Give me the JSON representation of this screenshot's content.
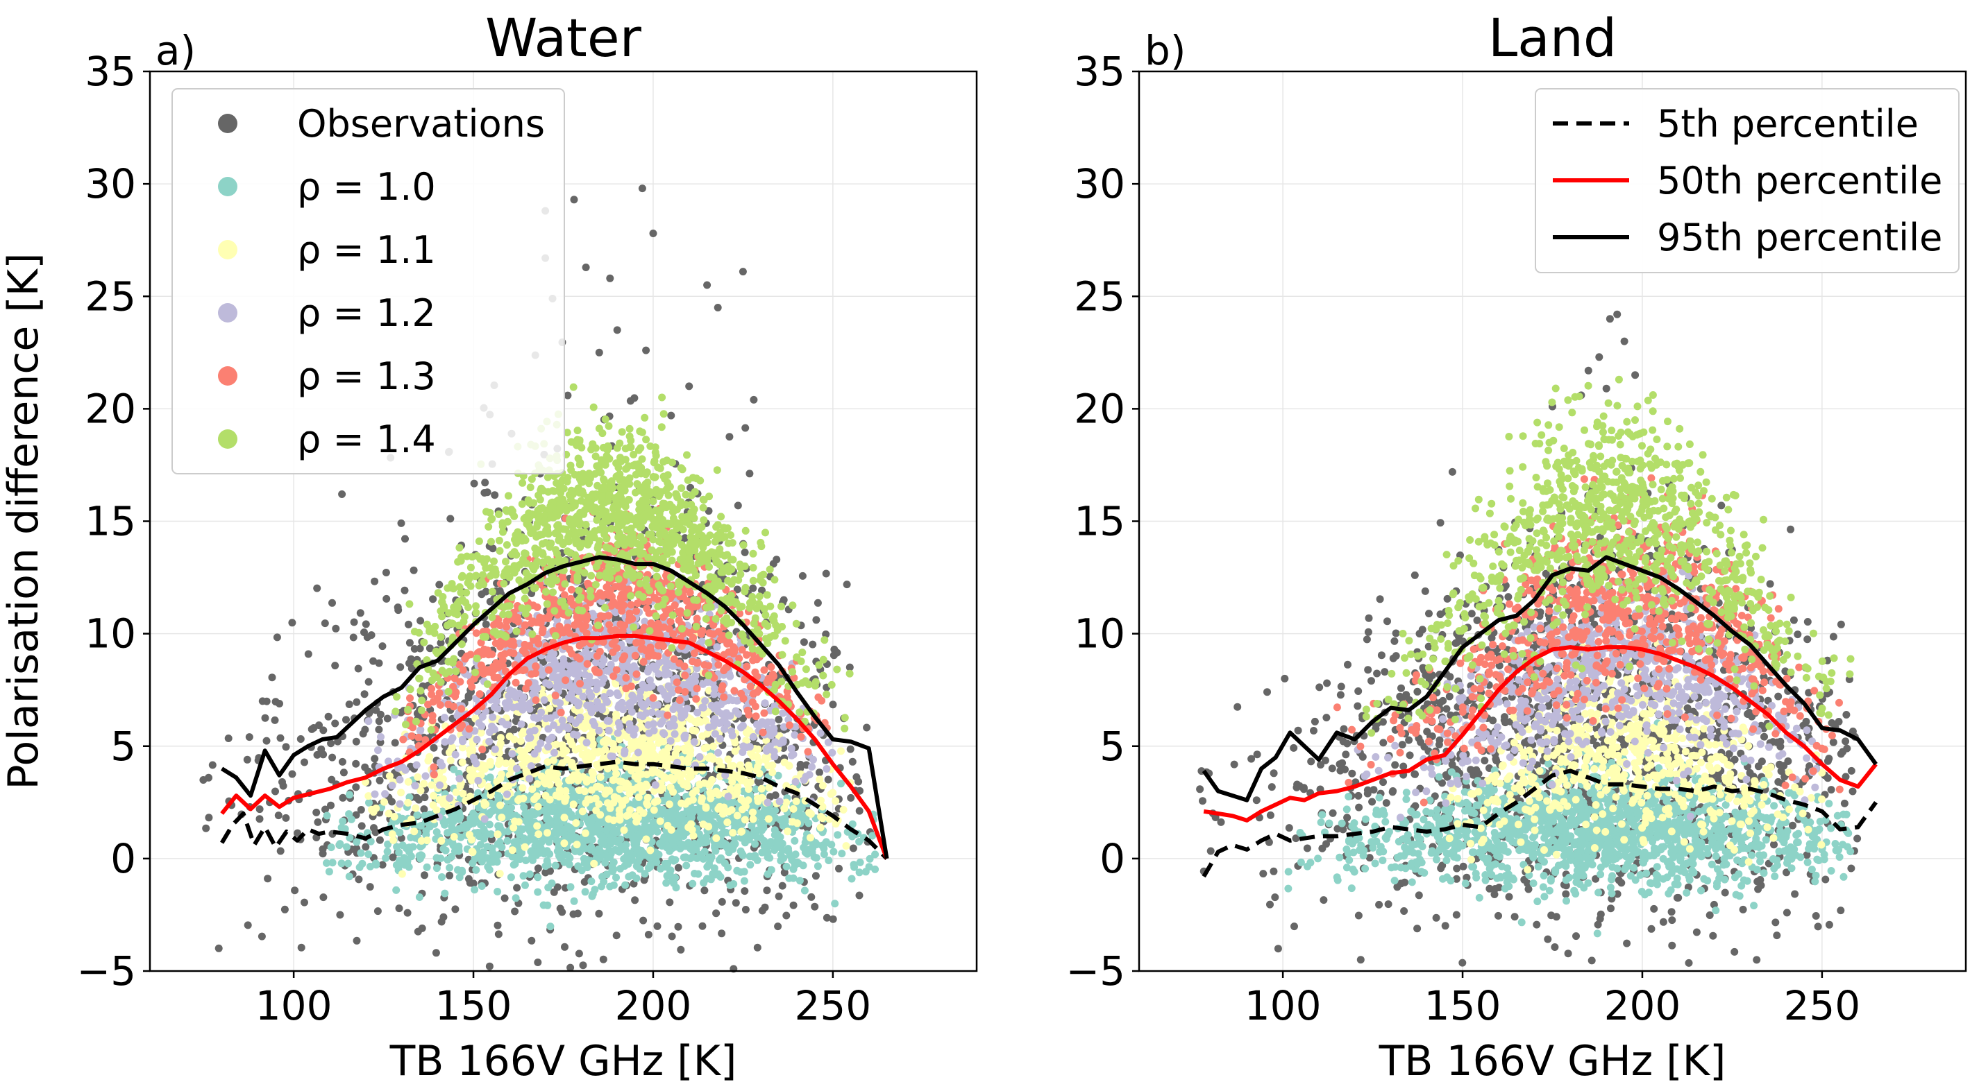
{
  "chart_data": [
    {
      "type": "scatter",
      "panel_label": "a)",
      "title": "Water",
      "xlabel": "TB 166V GHz [K]",
      "ylabel": "Polarisation difference [K]",
      "xlim": [
        60,
        290
      ],
      "ylim": [
        -5,
        35
      ],
      "xticks": [
        100,
        150,
        200,
        250
      ],
      "yticks": [
        -5,
        0,
        5,
        10,
        15,
        20,
        25,
        30,
        35
      ],
      "grid": true,
      "legend_position": "upper-left",
      "legend": [
        "Observations",
        "ρ = 1.0",
        "ρ = 1.1",
        "ρ = 1.2",
        "ρ = 1.3",
        "ρ = 1.4"
      ],
      "scatter_series": [
        {
          "name": "Observations",
          "color": "#666666",
          "x_range": [
            70,
            262
          ],
          "center": [
            180,
            6.5
          ],
          "spread": [
            42,
            5.5
          ],
          "n": 1400,
          "outliers": [
            [
              170,
              28.8
            ],
            [
              178,
              29.3
            ],
            [
              197,
              29.8
            ],
            [
              200,
              27.8
            ],
            [
              170,
              26.7
            ],
            [
              225,
              26.1
            ],
            [
              215,
              25.5
            ],
            [
              185,
              22.5
            ],
            [
              198,
              22.6
            ],
            [
              218,
              24.5
            ],
            [
              210,
              21.0
            ],
            [
              172,
              24.9
            ],
            [
              190,
              23.5
            ],
            [
              188,
              25.8
            ],
            [
              228,
              20.4
            ],
            [
              205,
              19.7
            ]
          ]
        },
        {
          "name": "ρ = 1.0",
          "color": "#8dd3c7",
          "x_range": [
            108,
            262
          ],
          "center": [
            190,
            1.6
          ],
          "spread": [
            34,
            1.3
          ],
          "n": 1500
        },
        {
          "name": "ρ = 1.1",
          "color": "#ffffb3",
          "x_range": [
            118,
            255
          ],
          "center": [
            190,
            4.8
          ],
          "spread": [
            30,
            1.8
          ],
          "n": 900
        },
        {
          "name": "ρ = 1.2",
          "color": "#bebada",
          "x_range": [
            120,
            250
          ],
          "center": [
            190,
            8.8
          ],
          "spread": [
            28,
            1.8
          ],
          "n": 900
        },
        {
          "name": "ρ = 1.3",
          "color": "#fb8072",
          "x_range": [
            130,
            250
          ],
          "center": [
            190,
            11.5
          ],
          "spread": [
            28,
            1.6
          ],
          "n": 700
        },
        {
          "name": "ρ = 1.4",
          "color": "#b3de69",
          "x_range": [
            128,
            255
          ],
          "center": [
            188,
            15.5
          ],
          "spread": [
            28,
            2.0
          ],
          "n": 1200
        }
      ],
      "lines": [
        {
          "name": "5th percentile",
          "color": "#000000",
          "style": "dashed",
          "x": [
            80,
            83,
            86,
            89,
            92,
            95,
            98,
            101,
            104,
            107,
            110,
            115,
            120,
            125,
            130,
            135,
            140,
            145,
            150,
            155,
            160,
            165,
            170,
            175,
            180,
            185,
            190,
            195,
            200,
            205,
            210,
            215,
            220,
            225,
            230,
            235,
            240,
            245,
            250,
            255,
            260,
            265
          ],
          "y": [
            0.7,
            1.5,
            2.0,
            0.6,
            1.4,
            0.5,
            1.2,
            0.8,
            1.3,
            1.1,
            1.2,
            1.1,
            0.9,
            1.3,
            1.5,
            1.6,
            1.9,
            2.2,
            2.6,
            3.0,
            3.5,
            3.8,
            4.1,
            4.0,
            4.1,
            4.2,
            4.3,
            4.2,
            4.2,
            4.1,
            4.0,
            4.0,
            3.9,
            3.8,
            3.6,
            3.2,
            2.9,
            2.4,
            1.9,
            1.3,
            0.8,
            0.0
          ]
        },
        {
          "name": "50th percentile",
          "color": "#ff0000",
          "style": "solid",
          "x": [
            80,
            84,
            88,
            92,
            96,
            100,
            105,
            110,
            115,
            120,
            125,
            130,
            135,
            140,
            145,
            150,
            155,
            160,
            165,
            170,
            175,
            180,
            185,
            190,
            195,
            200,
            205,
            210,
            215,
            220,
            225,
            230,
            235,
            240,
            245,
            250,
            255,
            260,
            265
          ],
          "y": [
            2.0,
            2.8,
            2.2,
            2.8,
            2.3,
            2.7,
            2.9,
            3.1,
            3.4,
            3.6,
            4.0,
            4.3,
            4.8,
            5.4,
            6.0,
            6.6,
            7.3,
            8.2,
            8.9,
            9.3,
            9.6,
            9.8,
            9.8,
            9.9,
            9.9,
            9.8,
            9.7,
            9.6,
            9.2,
            8.8,
            8.3,
            7.7,
            7.0,
            6.2,
            5.3,
            4.2,
            3.2,
            2.1,
            0.0
          ]
        },
        {
          "name": "95th percentile",
          "color": "#000000",
          "style": "solid",
          "x": [
            80,
            84,
            88,
            92,
            96,
            100,
            104,
            108,
            112,
            116,
            120,
            125,
            130,
            135,
            140,
            145,
            150,
            155,
            160,
            165,
            170,
            175,
            180,
            185,
            190,
            195,
            200,
            205,
            210,
            215,
            220,
            225,
            230,
            235,
            240,
            245,
            250,
            255,
            260,
            265
          ],
          "y": [
            4.0,
            3.6,
            2.8,
            4.8,
            3.7,
            4.6,
            5.0,
            5.3,
            5.4,
            6.0,
            6.6,
            7.2,
            7.6,
            8.5,
            8.8,
            9.6,
            10.4,
            11.1,
            11.8,
            12.2,
            12.7,
            13.0,
            13.2,
            13.4,
            13.3,
            13.1,
            13.1,
            12.8,
            12.3,
            11.8,
            11.2,
            10.4,
            9.5,
            8.6,
            7.4,
            6.3,
            5.3,
            5.2,
            4.9,
            0.0
          ]
        }
      ]
    },
    {
      "type": "scatter",
      "panel_label": "b)",
      "title": "Land",
      "xlabel": "TB 166V GHz [K]",
      "ylabel": "",
      "xlim": [
        60,
        290
      ],
      "ylim": [
        -5,
        35
      ],
      "xticks": [
        100,
        150,
        200,
        250
      ],
      "yticks": [
        -5,
        0,
        5,
        10,
        15,
        20,
        25,
        30,
        35
      ],
      "grid": true,
      "legend_position": "upper-right",
      "legend": [
        "5th percentile",
        "50th percentile",
        "95th percentile"
      ],
      "scatter_series": [
        {
          "name": "Observations",
          "color": "#666666",
          "x_range": [
            68,
            260
          ],
          "center": [
            185,
            6.0
          ],
          "spread": [
            40,
            4.5
          ],
          "n": 1400,
          "outliers": [
            [
              193,
              24.2
            ],
            [
              191,
              24.0
            ],
            [
              195,
              23.0
            ],
            [
              188,
              22.3
            ],
            [
              185,
              21.7
            ],
            [
              183,
              20.6
            ],
            [
              190,
              20.9
            ],
            [
              198,
              21.5
            ],
            [
              175,
              20.1
            ]
          ]
        },
        {
          "name": "ρ = 1.0",
          "color": "#8dd3c7",
          "x_range": [
            100,
            258
          ],
          "center": [
            190,
            1.4
          ],
          "spread": [
            35,
            1.3
          ],
          "n": 1500
        },
        {
          "name": "ρ = 1.1",
          "color": "#ffffb3",
          "x_range": [
            145,
            250
          ],
          "center": [
            195,
            5.0
          ],
          "spread": [
            22,
            1.8
          ],
          "n": 600
        },
        {
          "name": "ρ = 1.2",
          "color": "#bebada",
          "x_range": [
            120,
            250
          ],
          "center": [
            195,
            8.5
          ],
          "spread": [
            28,
            1.8
          ],
          "n": 700
        },
        {
          "name": "ρ = 1.3",
          "color": "#fb8072",
          "x_range": [
            110,
            255
          ],
          "center": [
            195,
            11.5
          ],
          "spread": [
            28,
            2.0
          ],
          "n": 700
        },
        {
          "name": "ρ = 1.4",
          "color": "#b3de69",
          "x_range": [
            120,
            258
          ],
          "center": [
            192,
            15.5
          ],
          "spread": [
            28,
            2.2
          ],
          "n": 900
        }
      ],
      "lines": [
        {
          "name": "5th percentile",
          "color": "#000000",
          "style": "dashed",
          "x": [
            78,
            82,
            86,
            90,
            94,
            98,
            102,
            106,
            110,
            115,
            120,
            125,
            130,
            135,
            140,
            145,
            150,
            155,
            160,
            165,
            170,
            175,
            180,
            185,
            190,
            195,
            200,
            205,
            210,
            215,
            220,
            225,
            230,
            235,
            240,
            245,
            250,
            255,
            260,
            265
          ],
          "y": [
            -0.8,
            0.3,
            0.6,
            0.4,
            0.8,
            1.1,
            0.8,
            0.9,
            1.0,
            1.0,
            1.1,
            1.2,
            1.4,
            1.3,
            1.2,
            1.3,
            1.5,
            1.4,
            2.0,
            2.5,
            3.1,
            3.7,
            3.9,
            3.6,
            3.3,
            3.3,
            3.2,
            3.1,
            3.1,
            3.0,
            3.2,
            3.0,
            3.1,
            2.9,
            2.6,
            2.4,
            2.1,
            1.3,
            1.4,
            2.5
          ]
        },
        {
          "name": "50th percentile",
          "color": "#ff0000",
          "style": "solid",
          "x": [
            78,
            82,
            86,
            90,
            94,
            98,
            102,
            106,
            110,
            115,
            120,
            125,
            130,
            135,
            140,
            145,
            150,
            155,
            160,
            165,
            170,
            175,
            180,
            185,
            190,
            195,
            200,
            205,
            210,
            215,
            220,
            225,
            230,
            235,
            240,
            245,
            250,
            255,
            260,
            265
          ],
          "y": [
            2.1,
            2.0,
            1.9,
            1.7,
            2.1,
            2.4,
            2.7,
            2.6,
            2.9,
            3.0,
            3.2,
            3.5,
            3.8,
            3.9,
            4.4,
            4.6,
            5.5,
            6.5,
            7.5,
            8.3,
            8.9,
            9.3,
            9.4,
            9.3,
            9.4,
            9.4,
            9.3,
            9.1,
            8.8,
            8.5,
            8.1,
            7.6,
            7.0,
            6.4,
            5.6,
            5.0,
            4.2,
            3.5,
            3.2,
            4.2
          ]
        },
        {
          "name": "95th percentile",
          "color": "#000000",
          "style": "solid",
          "x": [
            78,
            82,
            86,
            90,
            94,
            98,
            102,
            106,
            110,
            115,
            120,
            125,
            130,
            135,
            140,
            145,
            150,
            155,
            160,
            165,
            170,
            175,
            180,
            185,
            190,
            195,
            200,
            205,
            210,
            215,
            220,
            225,
            230,
            235,
            240,
            245,
            250,
            255,
            260,
            265
          ],
          "y": [
            3.9,
            3.0,
            2.8,
            2.6,
            4.0,
            4.5,
            5.6,
            5.0,
            4.4,
            5.6,
            5.3,
            6.1,
            6.7,
            6.6,
            7.2,
            8.3,
            9.4,
            10.0,
            10.6,
            10.8,
            11.5,
            12.6,
            12.9,
            12.8,
            13.4,
            13.1,
            12.8,
            12.5,
            12.0,
            11.4,
            10.8,
            10.1,
            9.5,
            8.6,
            7.7,
            6.9,
            5.8,
            5.7,
            5.3,
            4.2
          ]
        }
      ]
    }
  ]
}
